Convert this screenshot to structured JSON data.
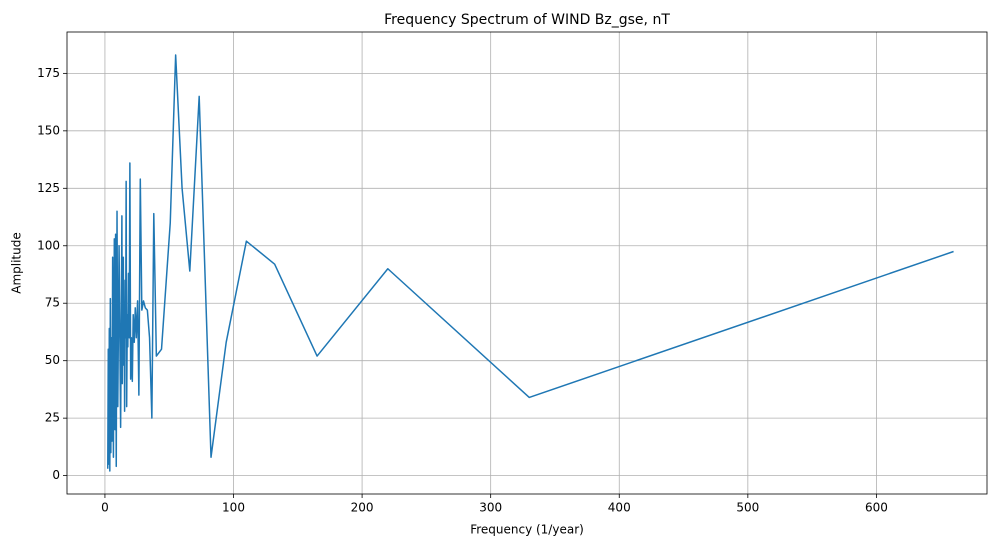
{
  "chart_data": {
    "type": "line",
    "title": "Frequency Spectrum of WIND Bz_gse, nT",
    "x_label": "Frequency (1/year)",
    "y_label": "Amplitude",
    "x": [
      2.2,
      2.6,
      3,
      3.4,
      3.8,
      4.2,
      4.6,
      5,
      5.5,
      6,
      6.6,
      7.3,
      7.8,
      8.3,
      8.8,
      9.4,
      10,
      11,
      12.2,
      13.2,
      13.5,
      13.8,
      14,
      14.3,
      14.7,
      15,
      15.3,
      15.7,
      16.1,
      16.5,
      16.9,
      17.4,
      17.8,
      18.3,
      18.9,
      19.4,
      20,
      20.6,
      21.3,
      22,
      22.8,
      23.6,
      24.4,
      25.4,
      26.4,
      27.5,
      28.7,
      30,
      31.4,
      33,
      34.7,
      36.5,
      38,
      40,
      44,
      50.8,
      55,
      60,
      66,
      73.3,
      82.5,
      94.3,
      110,
      132,
      165,
      220,
      330,
      660
    ],
    "series": [
      {
        "name": "Amplitude",
        "color": "#1f77b4",
        "values": [
          3,
          55,
          5,
          64,
          2,
          77,
          10,
          60,
          15,
          95,
          8,
          103,
          20,
          105,
          4,
          115,
          30,
          100,
          21,
          113,
          40,
          80,
          55,
          95,
          48,
          75,
          28,
          85,
          60,
          128,
          30,
          70,
          56,
          88,
          60,
          136,
          42,
          60,
          41,
          70,
          58,
          73,
          60,
          76,
          35,
          129,
          72,
          76,
          73,
          72,
          60,
          25,
          114,
          52,
          55,
          110,
          183,
          125,
          89,
          165,
          8,
          58,
          102,
          92,
          52,
          90,
          34,
          97.5
        ]
      }
    ],
    "xlim": [
      -29.5,
      686
    ],
    "ylim": [
      -8,
      193
    ],
    "xticks": [
      0,
      100,
      200,
      300,
      400,
      500,
      600
    ],
    "yticks": [
      0,
      25,
      50,
      75,
      100,
      125,
      150,
      175
    ],
    "grid": true
  }
}
